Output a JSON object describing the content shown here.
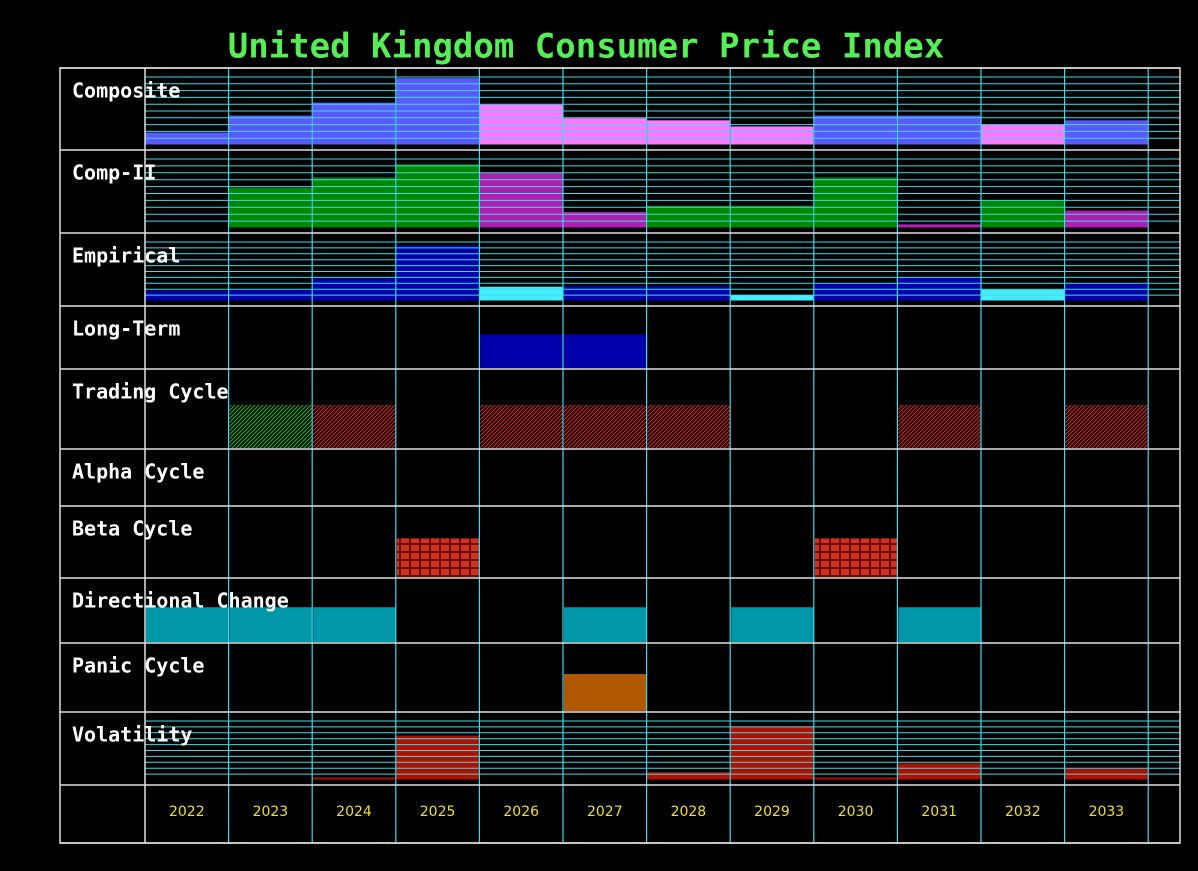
{
  "chart_data": {
    "type": "panel",
    "title": "United Kingdom Consumer Price Index",
    "categories": [
      "2022",
      "2023",
      "2024",
      "2025",
      "2026",
      "2027",
      "2028",
      "2029",
      "2030",
      "2031",
      "2032",
      "2033"
    ],
    "rows": [
      {
        "name": "Composite",
        "type": "level",
        "ylim": [
          0,
          10
        ],
        "yticks": [
          1,
          2,
          3,
          4,
          5,
          6,
          7,
          8,
          9,
          10
        ],
        "values": [
          1.9,
          4.4,
          6.3,
          9.9,
          6.0,
          4.0,
          3.7,
          2.8,
          4.4,
          4.4,
          3.1,
          3.7
        ],
        "colors": [
          "#5a5aff",
          "#5a5aff",
          "#5a5aff",
          "#5a5aff",
          "#ff78ff",
          "#ff78ff",
          "#ff78ff",
          "#ff78ff",
          "#5a5aff",
          "#5a5aff",
          "#ff78ff",
          "#5a5aff"
        ]
      },
      {
        "name": "Comp-II",
        "type": "level",
        "ylim": [
          0,
          10
        ],
        "yticks": [
          1,
          2,
          3,
          4,
          5,
          6,
          7,
          8,
          9,
          10
        ],
        "values": [
          null,
          5.9,
          7.4,
          9.3,
          8.1,
          2.4,
          3.3,
          3.3,
          7.4,
          0.6,
          4.0,
          2.6
        ],
        "colors": [
          "#008800",
          "#008800",
          "#008800",
          "#008800",
          "#b020b0",
          "#b020b0",
          "#008800",
          "#008800",
          "#008800",
          "#b020b0",
          "#008800",
          "#b020b0"
        ]
      },
      {
        "name": "Empirical",
        "type": "level",
        "ylim": [
          0,
          10
        ],
        "yticks": [
          1,
          2,
          3,
          4,
          5,
          6,
          7,
          8,
          9,
          10
        ],
        "values": [
          1.8,
          2.0,
          3.9,
          9.5,
          2.5,
          2.6,
          2.6,
          1.1,
          3.0,
          4.1,
          2.0,
          3.0
        ],
        "colors": [
          "#0000aa",
          "#0000aa",
          "#0000aa",
          "#0000aa",
          "#44eeff",
          "#0000aa",
          "#0000aa",
          "#44eeff",
          "#0000aa",
          "#0000aa",
          "#44eeff",
          "#0000aa"
        ]
      },
      {
        "name": "Long-Term",
        "type": "signal",
        "pattern": "solid",
        "values": [
          null,
          null,
          null,
          null,
          1,
          1,
          null,
          null,
          null,
          null,
          null,
          null
        ],
        "colors": [
          "#0000aa",
          "#0000aa",
          "#0000aa",
          "#0000aa",
          "#0000aa",
          "#0000aa",
          "#0000aa",
          "#0000aa",
          "#0000aa",
          "#0000aa",
          "#0000aa",
          "#0000aa"
        ]
      },
      {
        "name": "Trading Cycle",
        "type": "signal",
        "pattern": "hatch",
        "values": [
          null,
          1,
          1,
          null,
          1,
          1,
          1,
          null,
          null,
          1,
          null,
          1
        ],
        "colors": [
          "#cc2020",
          "#20a020",
          "#cc2020",
          "#cc2020",
          "#cc2020",
          "#cc2020",
          "#cc2020",
          "#cc2020",
          "#cc2020",
          "#cc2020",
          "#cc2020",
          "#cc2020"
        ]
      },
      {
        "name": "Alpha Cycle",
        "type": "signal",
        "pattern": "solid",
        "values": [
          null,
          null,
          null,
          null,
          null,
          null,
          null,
          null,
          null,
          null,
          null,
          null
        ],
        "colors": [
          "#cc2020",
          "#cc2020",
          "#cc2020",
          "#cc2020",
          "#cc2020",
          "#cc2020",
          "#cc2020",
          "#cc2020",
          "#cc2020",
          "#cc2020",
          "#cc2020",
          "#cc2020"
        ]
      },
      {
        "name": "Beta Cycle",
        "type": "signal",
        "pattern": "brick",
        "values": [
          null,
          null,
          null,
          1,
          null,
          null,
          null,
          null,
          1,
          null,
          null,
          null
        ],
        "colors": [
          "#d03020",
          "#d03020",
          "#d03020",
          "#d03020",
          "#d03020",
          "#d03020",
          "#d03020",
          "#d03020",
          "#d03020",
          "#d03020",
          "#d03020",
          "#d03020"
        ]
      },
      {
        "name": "Directional Change",
        "type": "signal",
        "pattern": "solid",
        "values": [
          1,
          1,
          1,
          null,
          null,
          1,
          null,
          1,
          null,
          1,
          null,
          null
        ],
        "colors": [
          "#0098a8",
          "#0098a8",
          "#0098a8",
          "#0098a8",
          "#0098a8",
          "#0098a8",
          "#0098a8",
          "#0098a8",
          "#0098a8",
          "#0098a8",
          "#0098a8",
          "#0098a8"
        ]
      },
      {
        "name": "Panic Cycle",
        "type": "signal",
        "pattern": "solid",
        "values": [
          null,
          null,
          null,
          null,
          null,
          1,
          null,
          null,
          null,
          null,
          null,
          null
        ],
        "colors": [
          "#b05800",
          "#b05800",
          "#b05800",
          "#b05800",
          "#b05800",
          "#b05800",
          "#b05800",
          "#b05800",
          "#b05800",
          "#b05800",
          "#b05800",
          "#b05800"
        ]
      },
      {
        "name": "Volatility",
        "type": "level",
        "ylim": [
          0,
          10
        ],
        "yticks": [
          1,
          2,
          3,
          4,
          5,
          6,
          7,
          8,
          9,
          10
        ],
        "values": [
          null,
          null,
          0.5,
          7.6,
          null,
          null,
          1.4,
          9.2,
          0.5,
          2.9,
          null,
          2.0
        ],
        "colors": [
          "#b01000",
          "#b01000",
          "#b01000",
          "#b01000",
          "#b01000",
          "#b01000",
          "#b01000",
          "#b01000",
          "#b01000",
          "#b01000",
          "#b01000",
          "#b01000"
        ]
      }
    ]
  }
}
